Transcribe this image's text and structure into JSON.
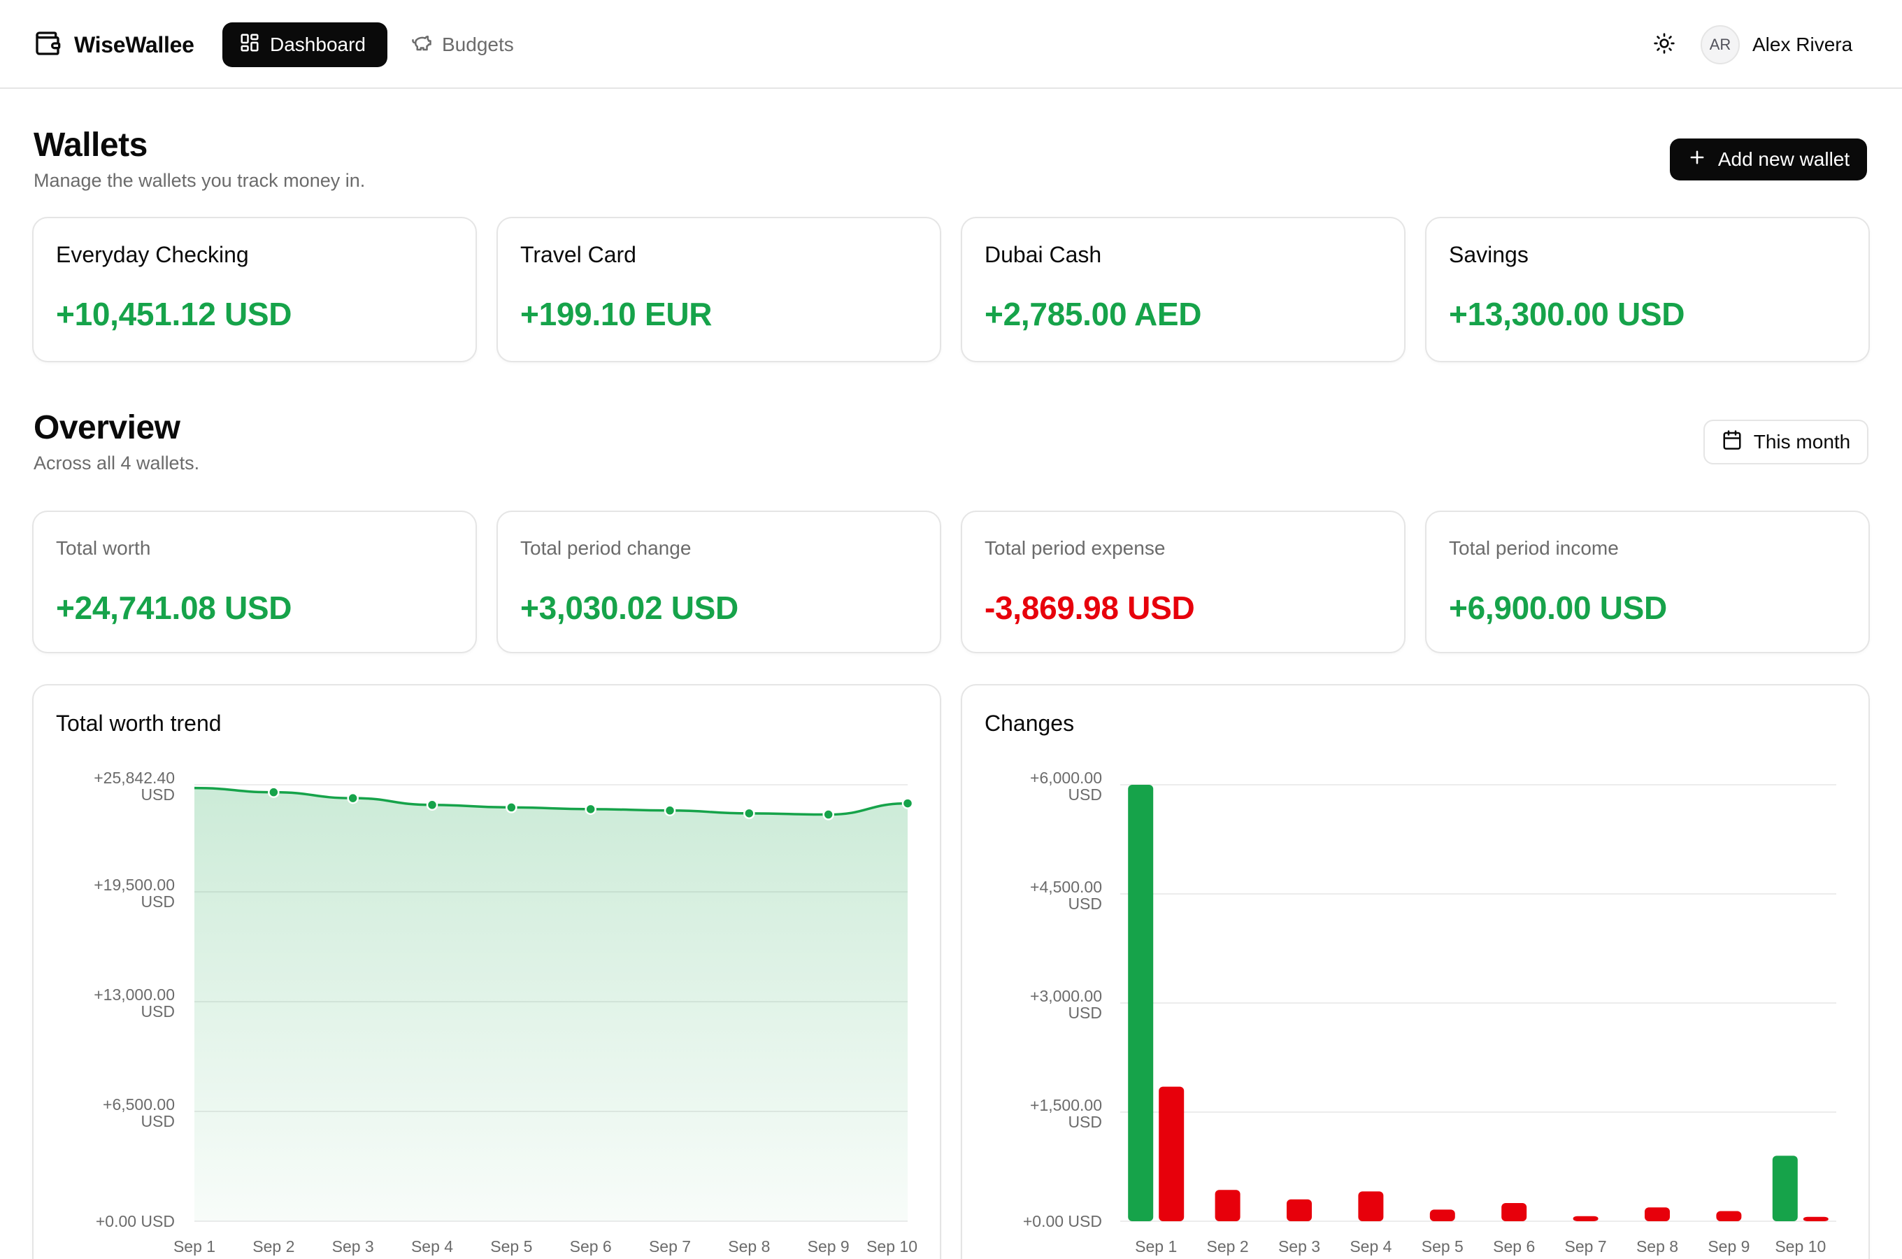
{
  "app": {
    "name": "WiseWallee",
    "nav": [
      {
        "label": "Dashboard",
        "icon": "grid-icon",
        "active": true
      },
      {
        "label": "Budgets",
        "icon": "piggy-bank-icon",
        "active": false
      }
    ],
    "theme_icon": "sun-icon",
    "user": {
      "initials": "AR",
      "name": "Alex Rivera"
    }
  },
  "wallets": {
    "title": "Wallets",
    "subtitle": "Manage the wallets you track money in.",
    "add_button": "Add new wallet",
    "items": [
      {
        "name": "Everyday Checking",
        "balance": "+10,451.12 USD"
      },
      {
        "name": "Travel Card",
        "balance": "+199.10 EUR"
      },
      {
        "name": "Dubai Cash",
        "balance": "+2,785.00 AED"
      },
      {
        "name": "Savings",
        "balance": "+13,300.00 USD"
      }
    ]
  },
  "overview": {
    "title": "Overview",
    "subtitle": "Across all 4 wallets.",
    "period_button": "This month",
    "stats": [
      {
        "label": "Total worth",
        "value": "+24,741.08 USD",
        "tone": "positive"
      },
      {
        "label": "Total period change",
        "value": "+3,030.02 USD",
        "tone": "positive"
      },
      {
        "label": "Total period expense",
        "value": "-3,869.98 USD",
        "tone": "negative"
      },
      {
        "label": "Total period income",
        "value": "+6,900.00 USD",
        "tone": "positive"
      }
    ]
  },
  "colors": {
    "positive": "#16a34a",
    "negative": "#e7000b",
    "accent": "#0a0a0a"
  },
  "chart_data": [
    {
      "type": "area",
      "title": "Total worth trend",
      "x": [
        "Sep 1",
        "Sep 2",
        "Sep 3",
        "Sep 4",
        "Sep 5",
        "Sep 6",
        "Sep 7",
        "Sep 8",
        "Sep 9",
        "Sep 10"
      ],
      "y": [
        25650,
        25400,
        25050,
        24650,
        24500,
        24400,
        24320,
        24150,
        24080,
        24741.08
      ],
      "ylim": [
        0,
        25842.4
      ],
      "y_ticks": [
        {
          "value": 0,
          "label": [
            "+0.00 USD"
          ]
        },
        {
          "value": 6500,
          "label": [
            "+6,500.00",
            "USD"
          ]
        },
        {
          "value": 13000,
          "label": [
            "+13,000.00",
            "USD"
          ]
        },
        {
          "value": 19500,
          "label": [
            "+19,500.00",
            "USD"
          ]
        },
        {
          "value": 25842.4,
          "label": [
            "+25,842.40",
            "USD"
          ]
        }
      ],
      "grid": true
    },
    {
      "type": "bar",
      "title": "Changes",
      "categories": [
        "Sep 1",
        "Sep 2",
        "Sep 3",
        "Sep 4",
        "Sep 5",
        "Sep 6",
        "Sep 7",
        "Sep 8",
        "Sep 9",
        "Sep 10"
      ],
      "series": [
        {
          "values": [
            6000,
            0,
            0,
            0,
            0,
            0,
            0,
            0,
            0,
            900
          ],
          "color": "#16a34a"
        },
        {
          "values": [
            1850,
            430,
            300,
            410,
            160,
            250,
            70,
            190,
            140,
            60
          ],
          "color": "#e7000b"
        }
      ],
      "ylim": [
        0,
        6000
      ],
      "y_ticks": [
        {
          "value": 0,
          "label": [
            "+0.00 USD"
          ]
        },
        {
          "value": 1500,
          "label": [
            "+1,500.00",
            "USD"
          ]
        },
        {
          "value": 3000,
          "label": [
            "+3,000.00",
            "USD"
          ]
        },
        {
          "value": 4500,
          "label": [
            "+4,500.00",
            "USD"
          ]
        },
        {
          "value": 6000,
          "label": [
            "+6,000.00",
            "USD"
          ]
        }
      ],
      "grid": true
    }
  ]
}
